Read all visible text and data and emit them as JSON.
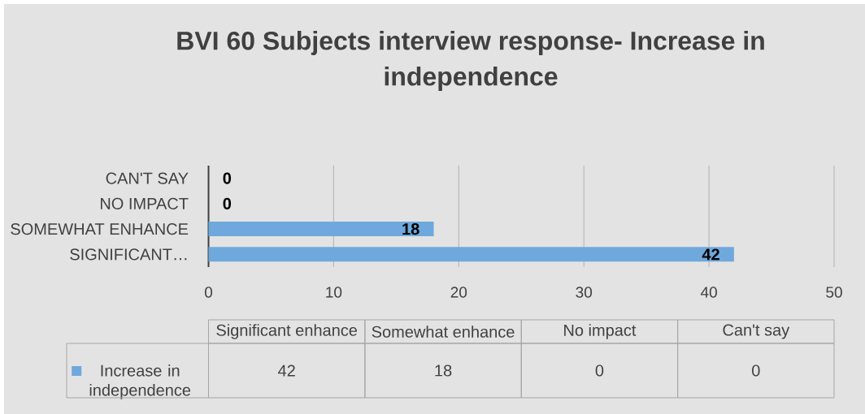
{
  "chart_data": {
    "type": "bar",
    "orientation": "horizontal",
    "title": "BVI 60 Subjects interview response- Increase in independence",
    "categories": [
      "CAN'T SAY",
      "NO IMPACT",
      "SOMEWHAT ENHANCE",
      "SIGNIFICANT…"
    ],
    "series": [
      {
        "name": "Increase in independence",
        "color": "#6fa8dc",
        "values": [
          0,
          0,
          18,
          42
        ]
      }
    ],
    "xlim": [
      0,
      50
    ],
    "xticks": [
      0,
      10,
      20,
      30,
      40,
      50
    ],
    "grid": "x",
    "legend": "bottom left",
    "data_labels": true,
    "annotations": [
      "Significant enhance",
      "Somewhat enhance",
      "No impact",
      "Can't say",
      "42",
      "18",
      "0",
      "0"
    ]
  }
}
